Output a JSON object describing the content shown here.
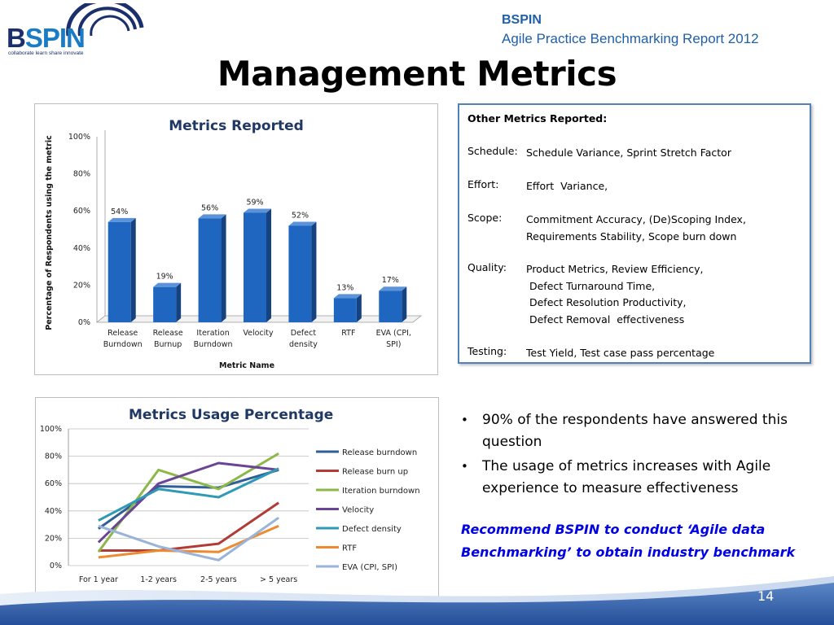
{
  "header": {
    "logo_word": [
      "B",
      "SPIN"
    ],
    "logo_tagline": "collaborate learn share innovate",
    "org": "BSPIN",
    "report": "Agile Practice Benchmarking Report 2012"
  },
  "page_title": "Management Metrics",
  "other_metrics": {
    "title": "Other Metrics Reported:",
    "rows": [
      {
        "label": "Schedule:",
        "lines": [
          "Schedule Variance, Sprint Stretch Factor"
        ]
      },
      {
        "label": "Effort:",
        "lines": [
          "Effort  Variance,"
        ]
      },
      {
        "label": "Scope:",
        "lines": [
          "Commitment Accuracy, (De)Scoping Index,",
          "Requirements Stability, Scope burn down"
        ]
      },
      {
        "label": "Quality:",
        "lines": [
          "Product Metrics, Review Efficiency,",
          " Defect Turnaround Time,",
          " Defect Resolution Productivity,",
          " Defect Removal  effectiveness"
        ]
      },
      {
        "label": "Testing:",
        "lines": [
          "Test Yield, Test case pass percentage"
        ]
      }
    ]
  },
  "bullets": [
    "90% of the respondents have answered this question",
    "The usage of metrics increases with Agile experience to measure effectiveness"
  ],
  "recommendation": "Recommend BSPIN to conduct ‘Agile data Benchmarking’ to obtain industry benchmark",
  "page_number": "14",
  "colors": {
    "bar": "#1f66c1",
    "title_blue": "#1f3864",
    "header_blue": "#1f5fa8",
    "recommend_blue": "#0000e6"
  },
  "chart_data": [
    {
      "type": "bar",
      "title": "Metrics Reported",
      "xlabel": "Metric Name",
      "ylabel": "Percentage of Respondents using the metric",
      "categories": [
        [
          "Release",
          "Burndown"
        ],
        [
          "Release",
          "Burnup"
        ],
        [
          "Iteration",
          "Burndown"
        ],
        [
          "Velocity"
        ],
        [
          "Defect",
          "density"
        ],
        [
          "RTF"
        ],
        [
          "EVA (CPI,",
          "SPI)"
        ]
      ],
      "values": [
        54,
        19,
        56,
        59,
        52,
        13,
        17
      ],
      "data_labels": [
        "54%",
        "19%",
        "56%",
        "59%",
        "52%",
        "13%",
        "17%"
      ],
      "yticks": [
        "0%",
        "20%",
        "40%",
        "60%",
        "80%",
        "100%"
      ],
      "ylim": [
        0,
        100
      ],
      "grid": false,
      "style": "3d"
    },
    {
      "type": "line",
      "title": "Metrics Usage Percentage",
      "categories": [
        "For 1 year",
        "1-2 years",
        "2-5 years",
        "> 5 years"
      ],
      "yticks": [
        "0%",
        "20%",
        "40%",
        "60%",
        "80%",
        "100%"
      ],
      "ylim": [
        0,
        100
      ],
      "grid": true,
      "legend": "right",
      "series": [
        {
          "name": "Release burndown",
          "color": "#2f5f96",
          "values": [
            27,
            58,
            57,
            70
          ]
        },
        {
          "name": "Release burn up",
          "color": "#b23b36",
          "values": [
            11,
            11,
            16,
            46
          ]
        },
        {
          "name": "Iteration burndown",
          "color": "#8cb849",
          "values": [
            10,
            70,
            56,
            82
          ]
        },
        {
          "name": "Velocity",
          "color": "#6a4596",
          "values": [
            17,
            60,
            75,
            70
          ]
        },
        {
          "name": "Defect density",
          "color": "#2f9ab5",
          "values": [
            33,
            56,
            50,
            71
          ]
        },
        {
          "name": "RTF",
          "color": "#ee8a2f",
          "values": [
            6,
            11,
            10,
            29
          ]
        },
        {
          "name": "EVA (CPI, SPI)",
          "color": "#9ab3d9",
          "values": [
            29,
            14,
            4,
            35
          ]
        }
      ]
    }
  ]
}
